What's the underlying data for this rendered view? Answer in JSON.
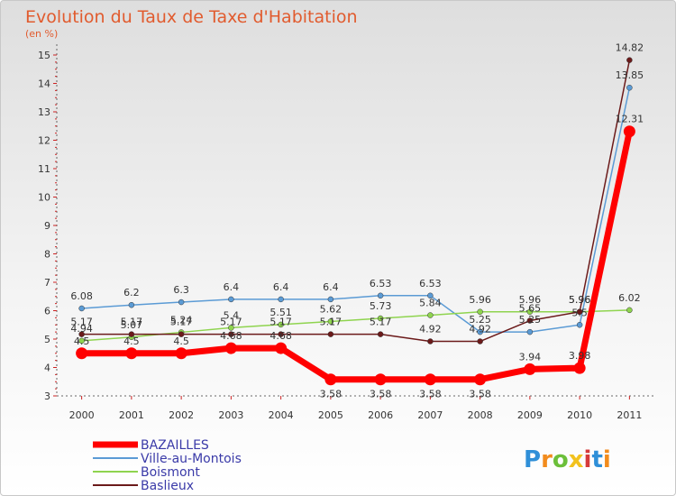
{
  "chart_data": {
    "type": "line",
    "title": "Evolution du Taux de Taxe d'Habitation",
    "subtitle": "(en %)",
    "x": [
      "2000",
      "2001",
      "2002",
      "2003",
      "2004",
      "2005",
      "2006",
      "2007",
      "2008",
      "2009",
      "2010",
      "2011"
    ],
    "ylim": [
      3,
      15
    ],
    "yticks": [
      "3",
      "4",
      "5",
      "6",
      "7",
      "8",
      "9",
      "10",
      "11",
      "12",
      "13",
      "14",
      "15"
    ],
    "grid": false,
    "legend_position": "bottom-left",
    "series": [
      {
        "name": "BAZAILLES",
        "color": "#ff0000",
        "values": [
          4.5,
          4.5,
          4.5,
          4.68,
          4.68,
          3.58,
          3.58,
          3.58,
          3.58,
          3.94,
          3.98,
          12.31
        ],
        "labels": [
          "4.5",
          "4.5",
          "4.5",
          "4.68",
          "4.68",
          "3.58",
          "3.58",
          "3.58",
          "3.58",
          "3.94",
          "3.98",
          "12.31"
        ]
      },
      {
        "name": "Ville-au-Montois",
        "color": "#5b9bd5",
        "values": [
          6.08,
          6.2,
          6.3,
          6.4,
          6.4,
          6.4,
          6.53,
          6.53,
          5.25,
          5.25,
          5.5,
          13.85
        ],
        "labels": [
          "6.08",
          "6.2",
          "6.3",
          "6.4",
          "6.4",
          "6.4",
          "6.53",
          "6.53",
          "5.25",
          "5.25",
          "5.5",
          "13.85"
        ]
      },
      {
        "name": "Boismont",
        "color": "#8fd44f",
        "values": [
          4.94,
          5.07,
          5.24,
          5.4,
          5.51,
          5.62,
          5.73,
          5.84,
          5.96,
          5.96,
          5.96,
          6.02
        ],
        "labels": [
          "4.94",
          "5.07",
          "5.24",
          "5.4",
          "5.51",
          "5.62",
          "5.73",
          "5.84",
          "5.96",
          "5.96",
          "5.96",
          "6.02"
        ]
      },
      {
        "name": "Baslieux",
        "color": "#6b1a1a",
        "values": [
          5.17,
          5.17,
          5.17,
          5.17,
          5.17,
          5.17,
          5.17,
          4.92,
          4.92,
          5.65,
          5.96,
          14.82
        ],
        "labels": [
          "5.17",
          "5.17",
          "5.17",
          "5.17",
          "5.17",
          "5.17",
          "5.17",
          "4.92",
          "4.92",
          "5.65",
          "5.96",
          "14.82"
        ]
      }
    ]
  },
  "branding": {
    "logo_text": "Proxiti",
    "logo_colors": [
      "#2f8fd8",
      "#f28c1e",
      "#6cbf3a",
      "#f2c21e",
      "#d63a3a"
    ]
  }
}
